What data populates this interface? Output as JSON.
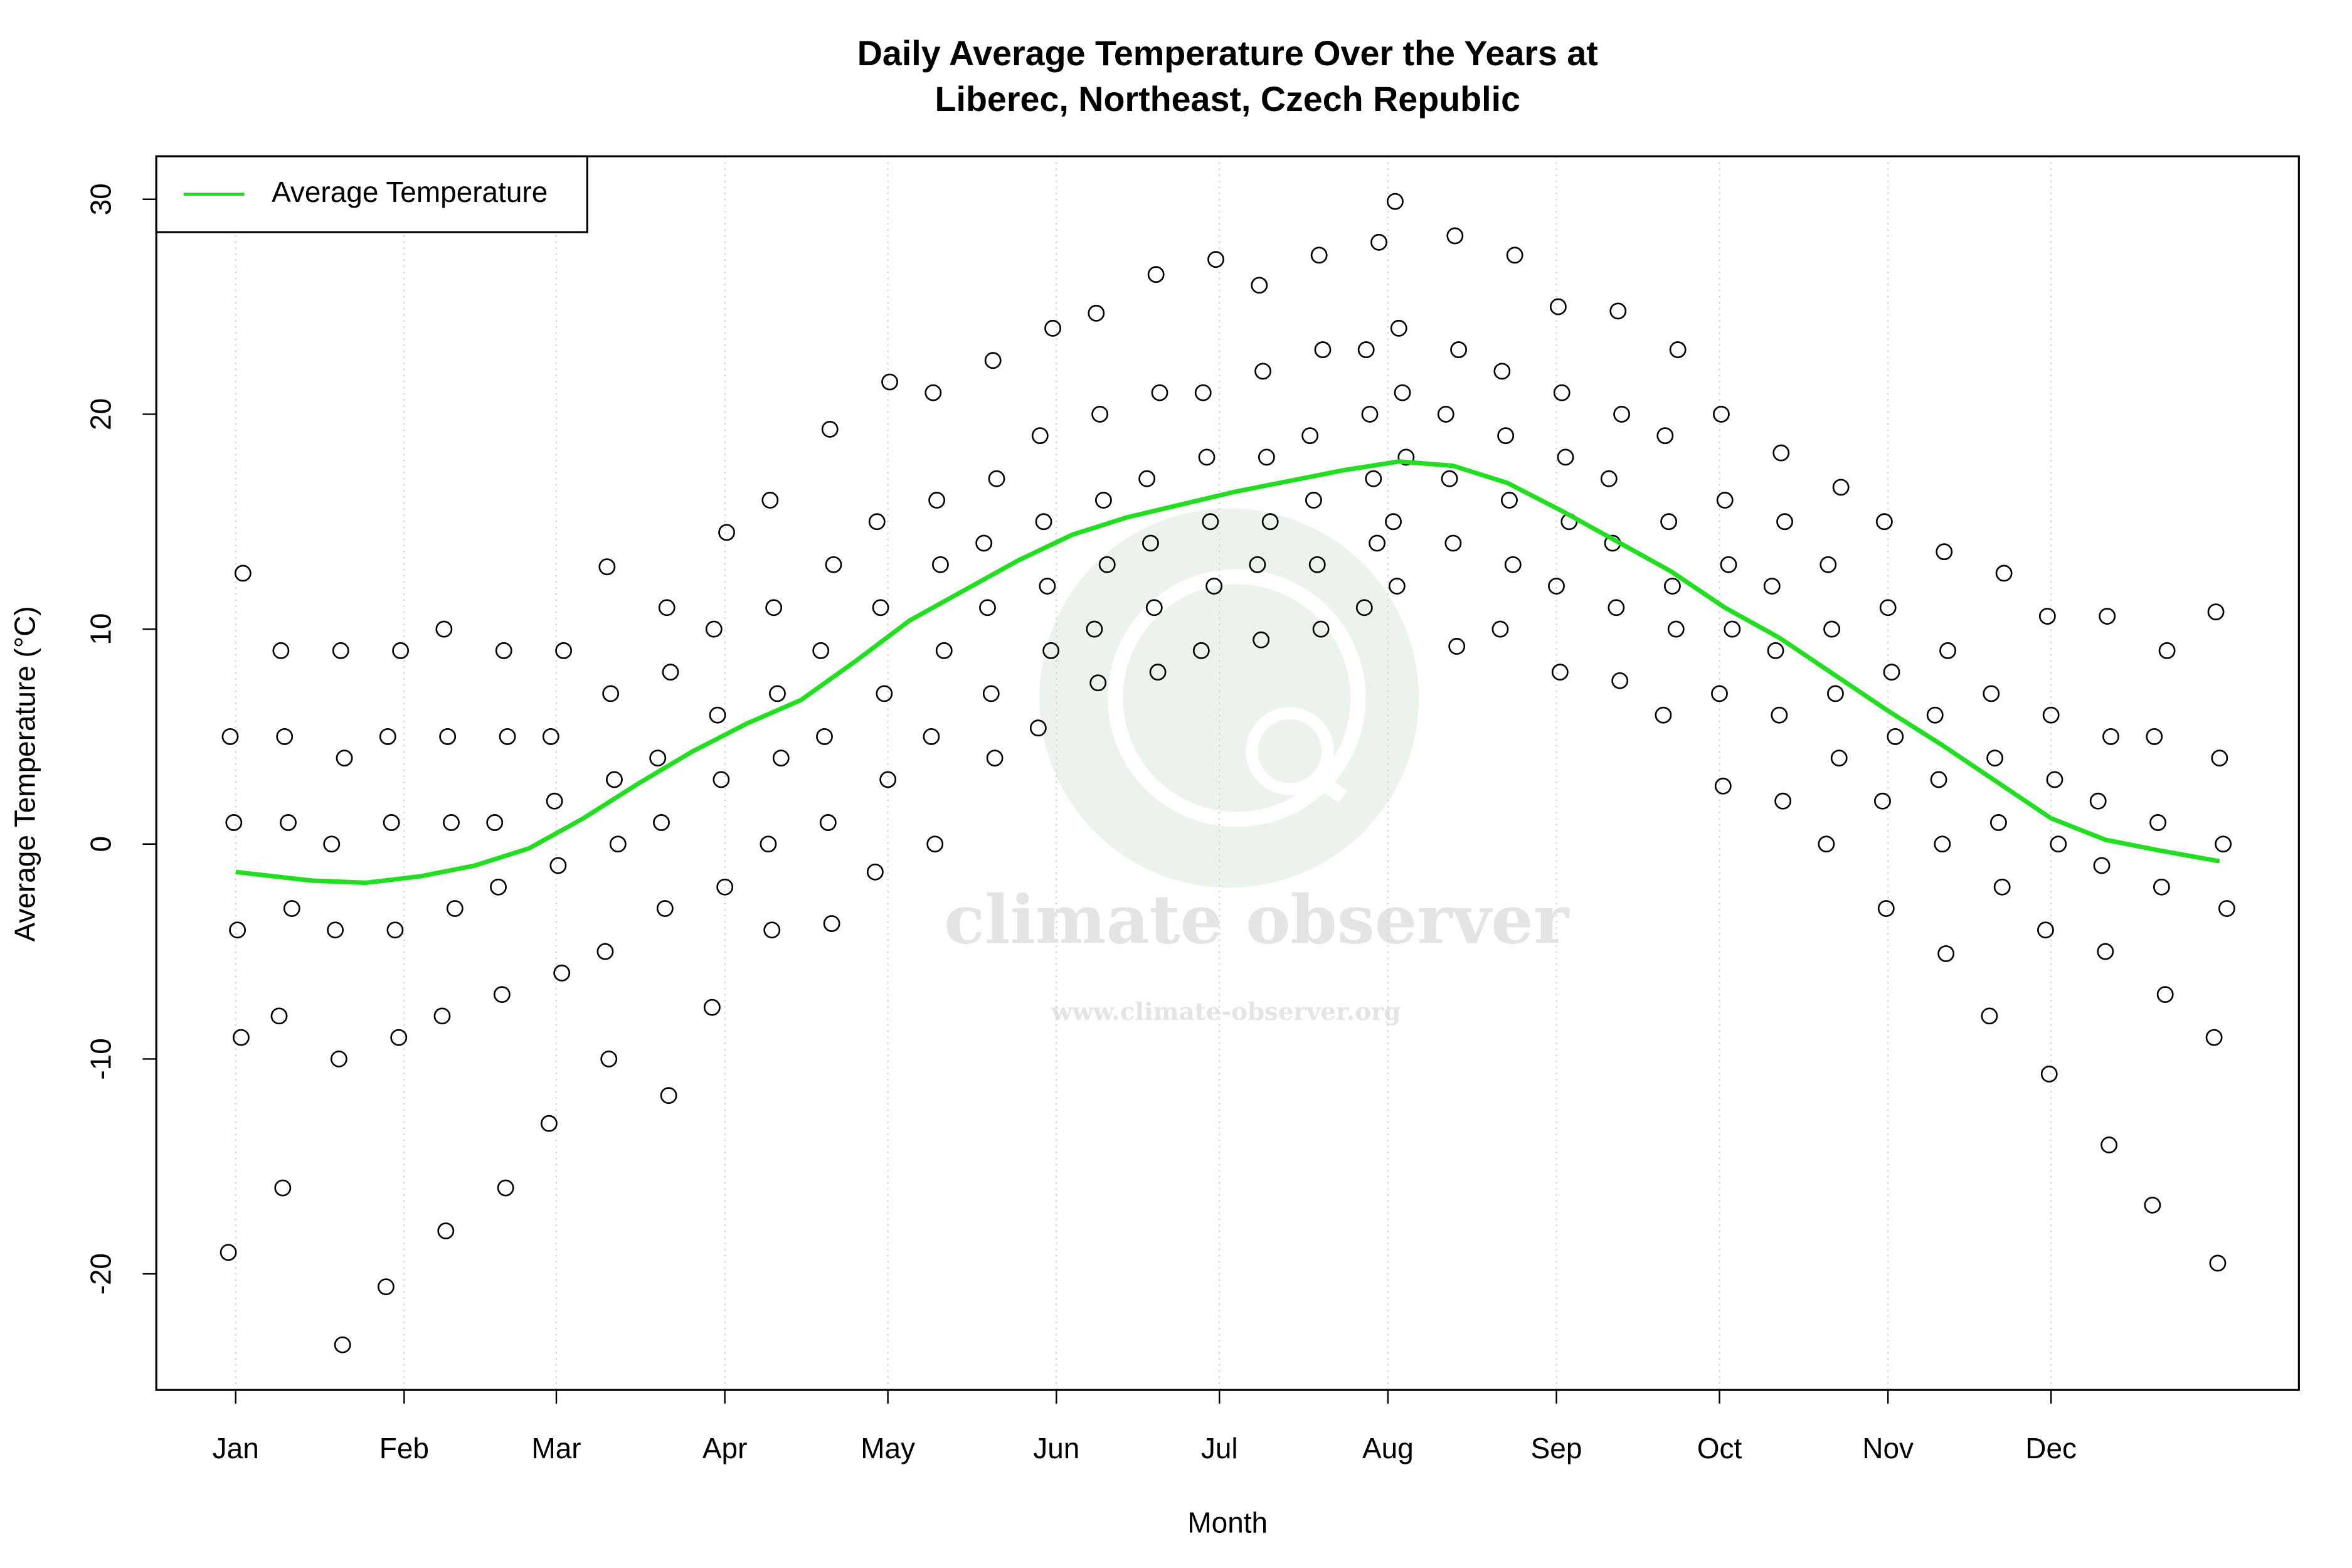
{
  "chart_data": {
    "type": "scatter",
    "title": [
      "Daily Average Temperature Over the Years at",
      "Liberec, Northeast, Czech Republic"
    ],
    "x_label": "Month",
    "y_label": "Average Temperature (°C)",
    "watermark": {
      "name": "climate observer",
      "url": "www.climate-observer.org"
    },
    "xlim": [
      -13.6,
      380.6
    ],
    "ylim": [
      -25.4,
      32.0
    ],
    "xticks": [
      {
        "value": 1,
        "label": "Jan"
      },
      {
        "value": 32,
        "label": "Feb"
      },
      {
        "value": 60,
        "label": "Mar"
      },
      {
        "value": 91,
        "label": "Apr"
      },
      {
        "value": 121,
        "label": "May"
      },
      {
        "value": 152,
        "label": "Jun"
      },
      {
        "value": 182,
        "label": "Jul"
      },
      {
        "value": 213,
        "label": "Aug"
      },
      {
        "value": 244,
        "label": "Sep"
      },
      {
        "value": 274,
        "label": "Oct"
      },
      {
        "value": 305,
        "label": "Nov"
      },
      {
        "value": 335,
        "label": "Dec"
      }
    ],
    "yticks": [
      -20,
      -10,
      0,
      10,
      20,
      30
    ],
    "grid": "x",
    "legend": "top-left",
    "series": [
      {
        "type": "scatter",
        "color": "#000000",
        "x": [
          1,
          10,
          20,
          30,
          40,
          50,
          60,
          70,
          80,
          90,
          100,
          110,
          120,
          130,
          140,
          150,
          160,
          170,
          180,
          190,
          200,
          210,
          215,
          225,
          235,
          245,
          255,
          265,
          275,
          285,
          295,
          305,
          315,
          325,
          335,
          345,
          355,
          366
        ],
        "values": [
          [
            -19,
            -9,
            -4,
            1,
            5,
            12.6
          ],
          [
            -16,
            -8,
            -3,
            1,
            5,
            9
          ],
          [
            -23.3,
            -10,
            -4,
            0,
            4,
            9
          ],
          [
            -20.6,
            -9,
            -4,
            1,
            5,
            9
          ],
          [
            -18,
            -8,
            -3,
            1,
            5,
            10
          ],
          [
            -16,
            -7,
            -2,
            1,
            5,
            9
          ],
          [
            -13,
            -6,
            -1,
            2,
            5,
            9
          ],
          [
            -10,
            -5,
            0,
            3,
            7,
            12.9
          ],
          [
            -11.7,
            -3,
            1,
            4,
            8,
            11
          ],
          [
            -7.6,
            -2,
            3,
            6,
            10,
            14.5
          ],
          [
            -4,
            0,
            4,
            7,
            11,
            16
          ],
          [
            -3.7,
            1,
            5,
            9,
            13,
            19.3
          ],
          [
            -1.3,
            3,
            7,
            11,
            15,
            21.5
          ],
          [
            0,
            5,
            9,
            13,
            16,
            21
          ],
          [
            4,
            7,
            11,
            14,
            17,
            22.5
          ],
          [
            5.4,
            9,
            12,
            15,
            19,
            24
          ],
          [
            7.5,
            10,
            13,
            16,
            20,
            24.7
          ],
          [
            8,
            11,
            14,
            17,
            21,
            26.5
          ],
          [
            9,
            12,
            15,
            18,
            21,
            27.2
          ],
          [
            9.5,
            13,
            15,
            18,
            22,
            26
          ],
          [
            10,
            13,
            16,
            19,
            23,
            27.4
          ],
          [
            11,
            14,
            17,
            20,
            23,
            28
          ],
          [
            12,
            15,
            18,
            21,
            24,
            29.9
          ],
          [
            9.2,
            14,
            17,
            20,
            23,
            28.3
          ],
          [
            10,
            13,
            16,
            19,
            22,
            27.4
          ],
          [
            8,
            12,
            15,
            18,
            21,
            25
          ],
          [
            7.6,
            11,
            14,
            17,
            20,
            24.8
          ],
          [
            6,
            10,
            12,
            15,
            19,
            23
          ],
          [
            2.7,
            7,
            10,
            13,
            16,
            20
          ],
          [
            2,
            6,
            9,
            12,
            15,
            18.2
          ],
          [
            0,
            4,
            7,
            10,
            13,
            16.6
          ],
          [
            -3,
            2,
            5,
            8,
            11,
            15
          ],
          [
            -5.1,
            0,
            3,
            6,
            9,
            13.6
          ],
          [
            -8,
            -2,
            1,
            4,
            7,
            12.6
          ],
          [
            -10.7,
            -4,
            0,
            3,
            6,
            10.6
          ],
          [
            -14,
            -5,
            -1,
            2,
            5,
            10.6
          ],
          [
            -16.8,
            -7,
            -2,
            1,
            5,
            9
          ],
          [
            -19.5,
            -9,
            -3,
            0,
            4,
            10.8
          ]
        ]
      },
      {
        "type": "line",
        "name": "Average Temperature",
        "color": "#22dd22",
        "x": [
          1,
          15,
          25,
          35,
          45,
          55,
          65,
          75,
          85,
          95,
          105,
          115,
          125,
          135,
          145,
          155,
          165,
          175,
          185,
          195,
          205,
          215,
          225,
          235,
          245,
          255,
          265,
          275,
          285,
          295,
          305,
          315,
          325,
          335,
          345,
          355,
          366
        ],
        "values": [
          -1.3,
          -1.7,
          -1.8,
          -1.5,
          -1.0,
          -0.2,
          1.2,
          2.8,
          4.3,
          5.6,
          6.7,
          8.5,
          10.4,
          11.8,
          13.2,
          14.4,
          15.2,
          15.8,
          16.4,
          16.9,
          17.4,
          17.8,
          17.6,
          16.8,
          15.5,
          14.1,
          12.7,
          11.0,
          9.6,
          7.9,
          6.2,
          4.6,
          2.9,
          1.2,
          0.2,
          -0.3,
          -0.8
        ]
      }
    ]
  }
}
